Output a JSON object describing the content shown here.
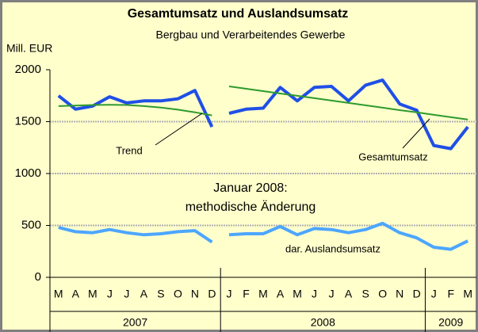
{
  "chart_data": {
    "type": "line",
    "title": "Gesamtumsatz und Auslandsumsatz",
    "subtitle": "Bergbau und Verarbeitendes Gewerbe",
    "y_label": "Mill. EUR",
    "categories": [
      "M",
      "A",
      "M",
      "J",
      "J",
      "A",
      "S",
      "O",
      "N",
      "D",
      "J",
      "F",
      "M",
      "A",
      "M",
      "J",
      "J",
      "A",
      "S",
      "O",
      "N",
      "D",
      "J",
      "F",
      "M"
    ],
    "years": [
      "2007",
      "2008",
      "2009"
    ],
    "year_months": [
      10,
      12,
      3
    ],
    "ylim": [
      0,
      2000
    ],
    "yticks": [
      0,
      500,
      1000,
      1500,
      2000
    ],
    "grid": true,
    "series": [
      {
        "color": "#1f4fe6",
        "values": [
          1750,
          1620,
          1650,
          1740,
          1680,
          1700,
          1700,
          1720,
          1800,
          1450,
          null,
          null,
          null,
          null,
          null,
          null,
          null,
          null,
          null,
          null,
          null,
          null,
          null,
          null,
          null
        ]
      },
      {
        "color": "#1f4fe6",
        "values": [
          null,
          null,
          null,
          null,
          null,
          null,
          null,
          null,
          null,
          null,
          1580,
          1620,
          1630,
          1830,
          1700,
          1830,
          1840,
          1700,
          1850,
          1900,
          1670,
          1610,
          1270,
          1240,
          1450
        ]
      },
      {
        "color": "#4da6ff",
        "values": [
          480,
          440,
          430,
          460,
          430,
          410,
          420,
          440,
          450,
          340,
          null,
          null,
          null,
          null,
          null,
          null,
          null,
          null,
          null,
          null,
          null,
          null,
          null,
          null,
          null
        ]
      },
      {
        "color": "#4da6ff",
        "values": [
          null,
          null,
          null,
          null,
          null,
          null,
          null,
          null,
          null,
          null,
          410,
          420,
          420,
          490,
          410,
          470,
          460,
          430,
          460,
          520,
          430,
          380,
          290,
          270,
          350
        ]
      },
      {
        "color": "#2e9a2e",
        "values": [
          1650,
          1655,
          1660,
          1662,
          1660,
          1650,
          1635,
          1615,
          1590,
          1560,
          null,
          null,
          null,
          null,
          null,
          null,
          null,
          null,
          null,
          null,
          null,
          null,
          null,
          null,
          null
        ]
      },
      {
        "color": "#2e9a2e",
        "values": [
          null,
          null,
          null,
          null,
          null,
          null,
          null,
          null,
          null,
          null,
          1840,
          1817,
          1794,
          1771,
          1749,
          1726,
          1703,
          1680,
          1657,
          1634,
          1611,
          1589,
          1566,
          1543,
          1520
        ]
      }
    ],
    "annotations": [
      "Trend",
      "Gesamtumsatz",
      "dar. Auslandsumsatz",
      "Januar 2008:",
      "methodische  Änderung"
    ]
  }
}
